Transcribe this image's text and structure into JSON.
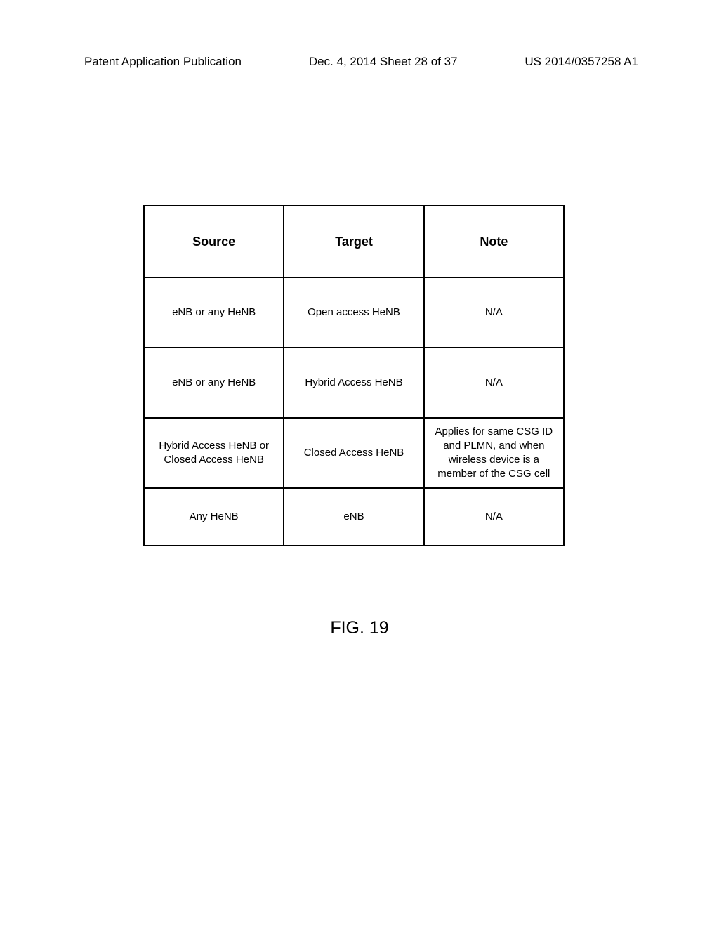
{
  "header": {
    "left": "Patent Application Publication",
    "center": "Dec. 4, 2014   Sheet 28 of 37",
    "right": "US 2014/0357258 A1"
  },
  "table": {
    "columns": [
      "Source",
      "Target",
      "Note"
    ],
    "rows": [
      [
        "eNB or any HeNB",
        "Open access HeNB",
        "N/A"
      ],
      [
        "eNB or any HeNB",
        "Hybrid Access HeNB",
        "N/A"
      ],
      [
        "Hybrid Access HeNB or Closed Access HeNB",
        "Closed Access HeNB",
        "Applies for same CSG ID and PLMN, and when wireless device is a member of the CSG cell"
      ],
      [
        "Any HeNB",
        "eNB",
        "N/A"
      ]
    ],
    "border_color": "#000000",
    "background_color": "#ffffff",
    "header_fontsize": 18,
    "cell_fontsize": 15
  },
  "figure_label": "FIG. 19"
}
